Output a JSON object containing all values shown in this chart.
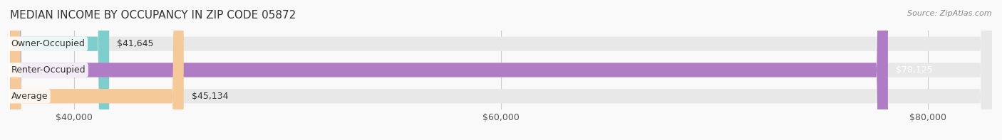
{
  "title": "MEDIAN INCOME BY OCCUPANCY IN ZIP CODE 05872",
  "source": "Source: ZipAtlas.com",
  "categories": [
    "Owner-Occupied",
    "Renter-Occupied",
    "Average"
  ],
  "values": [
    41645,
    78125,
    45134
  ],
  "value_labels": [
    "$41,645",
    "$78,125",
    "$45,134"
  ],
  "bar_colors": [
    "#7ecece",
    "#b07cc6",
    "#f5c998"
  ],
  "bar_bg_colors": [
    "#efefef",
    "#efefef",
    "#efefef"
  ],
  "xmin": 37000,
  "xmax": 83000,
  "xticks": [
    40000,
    60000,
    80000
  ],
  "xtick_labels": [
    "$40,000",
    "$60,000",
    "$80,000"
  ],
  "title_fontsize": 11,
  "label_fontsize": 9,
  "source_fontsize": 8,
  "bar_height": 0.55,
  "background_color": "#f9f9f9"
}
